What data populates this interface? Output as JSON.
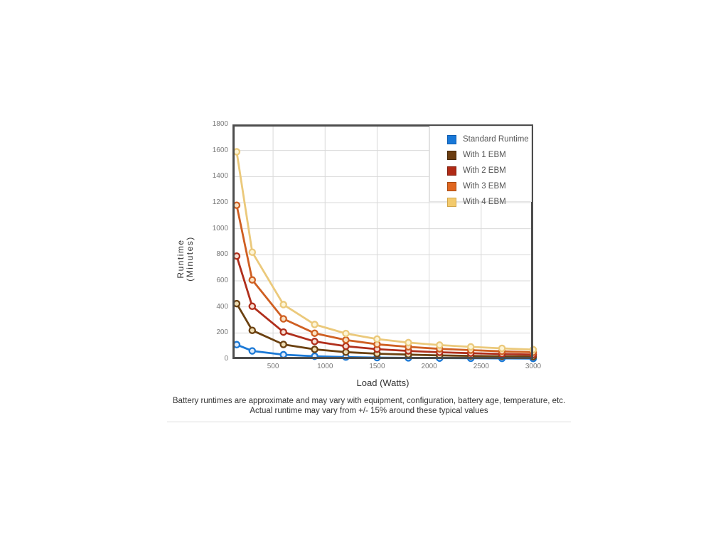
{
  "chart_data": {
    "type": "line",
    "title": "",
    "xlabel": "Load (Watts)",
    "ylabel": "Runtime (Minutes)",
    "ylabel_line1": "Runtime",
    "ylabel_line2": "(Minutes)",
    "xlim": [
      110,
      3000
    ],
    "ylim": [
      0,
      1800
    ],
    "x_ticks": [
      500,
      1000,
      1500,
      2000,
      2500,
      3000
    ],
    "y_ticks": [
      0,
      200,
      400,
      600,
      800,
      1000,
      1200,
      1400,
      1600,
      1800
    ],
    "grid": true,
    "legend_position": "top-right-inside",
    "x": [
      150,
      300,
      600,
      900,
      1200,
      1500,
      1800,
      2100,
      2400,
      2700,
      3000
    ],
    "series": [
      {
        "name": "Standard Runtime",
        "color": "#1b79d6",
        "marker_fill": "#ddeafa",
        "swatch": "#1878d8",
        "swatch_border": "#0d5cb0",
        "values": [
          110,
          62,
          33,
          21,
          15,
          11,
          9,
          7,
          6,
          5,
          4
        ]
      },
      {
        "name": "With 1 EBM",
        "color": "#6b4111",
        "marker_fill": "#eddcb2",
        "swatch": "#6b3c10",
        "swatch_border": "#452708",
        "values": [
          425,
          220,
          112,
          74,
          53,
          41,
          34,
          28,
          24,
          21,
          18
        ]
      },
      {
        "name": "With 2 EBM",
        "color": "#b02f1c",
        "marker_fill": "#f6ded2",
        "swatch": "#b02a15",
        "swatch_border": "#801e0e",
        "values": [
          790,
          405,
          207,
          135,
          98,
          76,
          62,
          52,
          45,
          39,
          34
        ]
      },
      {
        "name": "With 3 EBM",
        "color": "#cf5f22",
        "marker_fill": "#f9e2c4",
        "swatch": "#e0661f",
        "swatch_border": "#a84a12",
        "values": [
          1180,
          607,
          308,
          198,
          146,
          113,
          93,
          78,
          68,
          59,
          52
        ]
      },
      {
        "name": "With 4 EBM",
        "color": "#ebc97b",
        "marker_fill": "#fdf5d7",
        "swatch": "#f3ca6c",
        "swatch_border": "#d1a54a",
        "values": [
          1590,
          820,
          418,
          265,
          196,
          153,
          126,
          107,
          93,
          82,
          72
        ]
      }
    ]
  },
  "caption": {
    "line1": "Battery runtimes are approximate and may vary with equipment, configuration, battery age, temperature, etc.",
    "line2": "Actual runtime may vary from +/- 15% around these typical values"
  },
  "colors": {
    "axis_border": "#4d4d4d",
    "gridline": "#d9d9d9",
    "tick_label": "#7a7a7a",
    "axis_title": "#333333",
    "legend_text": "#555555",
    "caption_text": "#333333",
    "divider": "#dcdcdc",
    "background": "#ffffff"
  }
}
